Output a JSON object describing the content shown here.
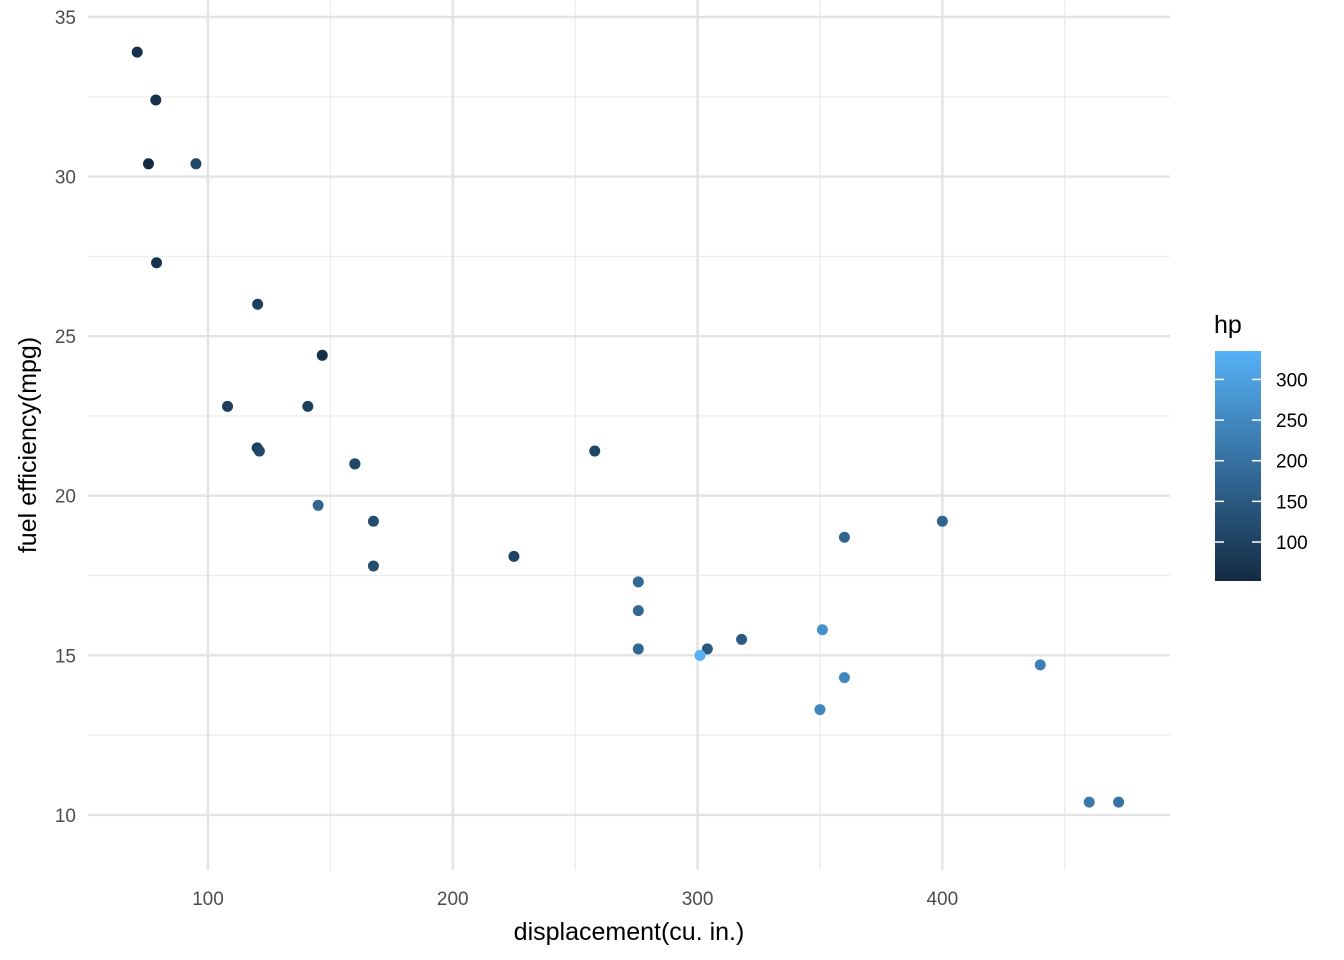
{
  "chart_data": {
    "type": "scatter",
    "title": "",
    "xlabel": "displacement(cu. in.)",
    "ylabel": "fuel efficiency(mpg)",
    "xlim": [
      51,
      493
    ],
    "ylim": [
      8.9,
      35.0
    ],
    "x_ticks": [
      100,
      200,
      300,
      400
    ],
    "y_ticks": [
      10,
      15,
      20,
      25,
      30,
      35
    ],
    "grid": true,
    "color_legend": {
      "title": "hp",
      "placement": "right",
      "range": [
        52,
        335
      ],
      "ticks": [
        100,
        150,
        200,
        250,
        300
      ],
      "low_color": "#132B43",
      "high_color": "#56B1F7"
    },
    "points": [
      {
        "x": 160.0,
        "y": 21.0,
        "hp": 110
      },
      {
        "x": 160.0,
        "y": 21.0,
        "hp": 110
      },
      {
        "x": 108.0,
        "y": 22.8,
        "hp": 93
      },
      {
        "x": 258.0,
        "y": 21.4,
        "hp": 110
      },
      {
        "x": 360.0,
        "y": 18.7,
        "hp": 175
      },
      {
        "x": 225.0,
        "y": 18.1,
        "hp": 105
      },
      {
        "x": 360.0,
        "y": 14.3,
        "hp": 245
      },
      {
        "x": 146.7,
        "y": 24.4,
        "hp": 62
      },
      {
        "x": 140.8,
        "y": 22.8,
        "hp": 95
      },
      {
        "x": 167.6,
        "y": 19.2,
        "hp": 123
      },
      {
        "x": 167.6,
        "y": 17.8,
        "hp": 123
      },
      {
        "x": 275.8,
        "y": 16.4,
        "hp": 180
      },
      {
        "x": 275.8,
        "y": 17.3,
        "hp": 180
      },
      {
        "x": 275.8,
        "y": 15.2,
        "hp": 180
      },
      {
        "x": 472.0,
        "y": 10.4,
        "hp": 205
      },
      {
        "x": 460.0,
        "y": 10.4,
        "hp": 215
      },
      {
        "x": 440.0,
        "y": 14.7,
        "hp": 230
      },
      {
        "x": 78.7,
        "y": 32.4,
        "hp": 66
      },
      {
        "x": 75.7,
        "y": 30.4,
        "hp": 52
      },
      {
        "x": 71.1,
        "y": 33.9,
        "hp": 65
      },
      {
        "x": 120.1,
        "y": 21.5,
        "hp": 97
      },
      {
        "x": 318.0,
        "y": 15.5,
        "hp": 150
      },
      {
        "x": 304.0,
        "y": 15.2,
        "hp": 150
      },
      {
        "x": 350.0,
        "y": 13.3,
        "hp": 245
      },
      {
        "x": 400.0,
        "y": 19.2,
        "hp": 175
      },
      {
        "x": 79.0,
        "y": 27.3,
        "hp": 66
      },
      {
        "x": 120.3,
        "y": 26.0,
        "hp": 91
      },
      {
        "x": 95.1,
        "y": 30.4,
        "hp": 113
      },
      {
        "x": 351.0,
        "y": 15.8,
        "hp": 264
      },
      {
        "x": 145.0,
        "y": 19.7,
        "hp": 175
      },
      {
        "x": 301.0,
        "y": 15.0,
        "hp": 335
      },
      {
        "x": 121.0,
        "y": 21.4,
        "hp": 109
      }
    ]
  }
}
